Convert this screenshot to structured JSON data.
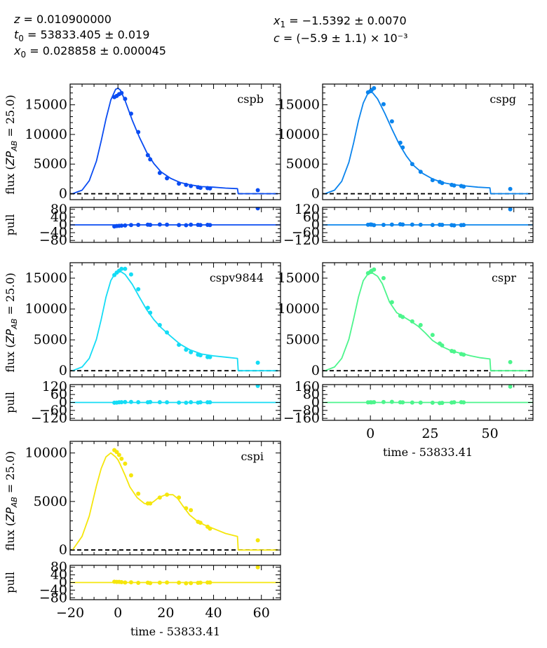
{
  "fit_params": [
    {
      "symbol": "z",
      "sub": "",
      "value": "= 0.010900000"
    },
    {
      "symbol": "t",
      "sub": "0",
      "value": "= 53833.405 ± 0.019"
    },
    {
      "symbol": "x",
      "sub": "0",
      "value": "= 0.028858 ± 0.000045"
    },
    {
      "symbol": "x",
      "sub": "1",
      "value": "= −1.5392 ± 0.0070"
    },
    {
      "symbol": "c",
      "sub": "",
      "value": "= (−5.9 ± 1.1) × 10⁻³"
    }
  ],
  "flux_ylabel": "flux (ZP_AB = 25.0)",
  "flux_ylabel_parts": {
    "prefix": "flux (",
    "zp": "ZP",
    "sub": "AB",
    "suffix": " = 25.0)"
  },
  "pull_ylabel": "pull",
  "xlabel": "time - 53833.41",
  "colors": {
    "cspb": "#0a4cf2",
    "cspg": "#0a84ed",
    "cspv9844": "#14dcf5",
    "cspr": "#4cf58c",
    "cspi": "#f5e60c",
    "zero_line": "#000000"
  },
  "chart_data": [
    {
      "type": "line",
      "band": "cspb",
      "xlim": [
        -20,
        68
      ],
      "ylim": [
        -1000,
        18500
      ],
      "yticks": [
        0,
        5000,
        10000,
        15000
      ],
      "xticks": [
        -20,
        0,
        20,
        40,
        60
      ],
      "model": {
        "x": [
          -19,
          -15,
          -12,
          -9,
          -7,
          -5,
          -3,
          -1,
          0,
          1,
          3,
          6,
          9,
          12,
          15,
          18,
          22,
          26,
          30,
          35,
          40,
          45,
          50,
          50.3,
          67
        ],
        "y": [
          0,
          600,
          2200,
          5500,
          8900,
          12600,
          15800,
          17600,
          17800,
          17500,
          15700,
          12400,
          9500,
          7000,
          5100,
          3700,
          2600,
          1900,
          1500,
          1200,
          1100,
          950,
          850,
          0,
          0
        ]
      },
      "data": {
        "x": [
          -1.5,
          -0.5,
          0.5,
          1.5,
          3,
          5.5,
          8.5,
          12.5,
          13.5,
          17.5,
          20.5,
          25.5,
          28.5,
          30.5,
          33.5,
          34.5,
          37.5,
          38.5,
          58.5
        ],
        "y": [
          16300,
          16500,
          16800,
          17000,
          16000,
          13500,
          10400,
          6500,
          5800,
          3500,
          2600,
          1700,
          1500,
          1300,
          1100,
          1000,
          950,
          900,
          600
        ]
      },
      "pull": {
        "ylim": [
          -90,
          90
        ],
        "yticks": [
          -80,
          -40,
          0,
          40,
          80
        ],
        "x": [
          -1.5,
          -0.5,
          0.5,
          1.5,
          3,
          5.5,
          8.5,
          12.5,
          13.5,
          17.5,
          20.5,
          25.5,
          28.5,
          30.5,
          33.5,
          34.5,
          37.5,
          38.5,
          58.5
        ],
        "y": [
          -8,
          -6,
          -5,
          -4,
          -3,
          -1,
          0,
          1,
          0,
          2,
          1,
          -1,
          -2,
          1,
          0,
          -1,
          0,
          -1,
          85
        ]
      }
    },
    {
      "type": "line",
      "band": "cspg",
      "xlim": [
        -20,
        68
      ],
      "ylim": [
        -1000,
        18500
      ],
      "yticks": [
        0,
        5000,
        10000,
        15000
      ],
      "xticks": [
        -20,
        0,
        20,
        40,
        60
      ],
      "model": {
        "x": [
          -19,
          -15,
          -12,
          -9,
          -7,
          -5,
          -3,
          -1,
          0,
          1,
          3,
          6,
          9,
          12,
          15,
          18,
          22,
          26,
          30,
          35,
          40,
          45,
          50,
          50.3,
          67
        ],
        "y": [
          0,
          600,
          2100,
          5300,
          8600,
          12300,
          15300,
          17000,
          17200,
          17000,
          16000,
          13600,
          10900,
          8400,
          6400,
          4800,
          3400,
          2500,
          1900,
          1500,
          1300,
          1100,
          1000,
          0,
          0
        ]
      },
      "data": {
        "x": [
          -1,
          0,
          0.5,
          1.5,
          5.5,
          9,
          12.5,
          13.5,
          17.5,
          21,
          26,
          29,
          30,
          34,
          35,
          38,
          39,
          58.5
        ],
        "y": [
          17100,
          17300,
          17500,
          17800,
          15100,
          12200,
          8600,
          7800,
          5000,
          3700,
          2300,
          2000,
          1800,
          1500,
          1400,
          1300,
          1200,
          800
        ]
      },
      "pull": {
        "ylim": [
          -135,
          135
        ],
        "yticks": [
          -120,
          -60,
          0,
          60,
          120
        ],
        "x": [
          -1,
          0,
          0.5,
          1.5,
          5.5,
          9,
          12.5,
          13.5,
          17.5,
          21,
          26,
          29,
          30,
          34,
          35,
          38,
          39,
          58.5
        ],
        "y": [
          1,
          3,
          2,
          -2,
          0,
          2,
          5,
          3,
          2,
          1,
          -1,
          1,
          0,
          -2,
          -4,
          -2,
          -1,
          120
        ]
      }
    },
    {
      "type": "line",
      "band": "cspv9844",
      "xlim": [
        -20,
        68
      ],
      "ylim": [
        -1000,
        17500
      ],
      "yticks": [
        0,
        5000,
        10000,
        15000
      ],
      "xticks": [
        -20,
        0,
        20,
        40,
        60
      ],
      "model": {
        "x": [
          -19,
          -15,
          -12,
          -9,
          -7,
          -5,
          -3,
          -1,
          0,
          1,
          3,
          6,
          9,
          12,
          15,
          18,
          22,
          26,
          30,
          35,
          40,
          45,
          50,
          50.3,
          67
        ],
        "y": [
          0,
          600,
          2000,
          5100,
          8300,
          11900,
          14600,
          15900,
          16100,
          16100,
          15600,
          14000,
          11900,
          9900,
          8300,
          7000,
          5600,
          4300,
          3400,
          2700,
          2400,
          2200,
          2000,
          0,
          0
        ]
      },
      "data": {
        "x": [
          -1.5,
          -0.5,
          0.5,
          1.5,
          3,
          5.5,
          8.5,
          12.5,
          13.5,
          17.5,
          20.5,
          25.5,
          28.5,
          30.5,
          33.5,
          34.5,
          37.5,
          38.5,
          58.5
        ],
        "y": [
          15500,
          15900,
          16200,
          16500,
          16500,
          15600,
          13200,
          10200,
          9400,
          7400,
          6200,
          4200,
          3400,
          3000,
          2600,
          2500,
          2200,
          2200,
          1300
        ]
      },
      "pull": {
        "ylim": [
          -135,
          135
        ],
        "yticks": [
          -120,
          -60,
          0,
          60,
          120
        ],
        "x": [
          -1.5,
          -0.5,
          0.5,
          1.5,
          3,
          5.5,
          8.5,
          12.5,
          13.5,
          17.5,
          20.5,
          25.5,
          28.5,
          30.5,
          33.5,
          34.5,
          37.5,
          38.5,
          58.5
        ],
        "y": [
          -2,
          -1,
          1,
          2,
          3,
          4,
          2,
          1,
          3,
          2,
          1,
          -1,
          -2,
          2,
          -1,
          1,
          1,
          1,
          125
        ]
      }
    },
    {
      "type": "line",
      "band": "cspr",
      "xlim": [
        -20,
        68
      ],
      "ylim": [
        -1000,
        17500
      ],
      "yticks": [
        0,
        5000,
        10000,
        15000
      ],
      "xticks": [
        0,
        25,
        50
      ],
      "model": {
        "x": [
          -19,
          -15,
          -12,
          -9,
          -7,
          -5,
          -3,
          -1,
          0,
          1,
          3,
          5,
          8,
          11,
          14,
          17,
          20,
          23,
          26,
          30,
          34,
          38,
          42,
          46,
          50,
          50.3,
          67
        ],
        "y": [
          0,
          600,
          2000,
          5100,
          8400,
          11900,
          14600,
          15700,
          15800,
          15800,
          15300,
          14100,
          11100,
          9400,
          8700,
          8000,
          7200,
          6100,
          4900,
          3900,
          3200,
          2800,
          2400,
          2100,
          1900,
          0,
          0
        ]
      },
      "data": {
        "x": [
          -1,
          0,
          0.5,
          1.5,
          5.5,
          9,
          12.5,
          13.5,
          17.5,
          21,
          26,
          29,
          30,
          34,
          35,
          38,
          39,
          58.5
        ],
        "y": [
          15800,
          16000,
          16200,
          16400,
          15000,
          11100,
          8900,
          8700,
          8000,
          7400,
          5800,
          4400,
          4100,
          3200,
          3100,
          2700,
          2600,
          1400
        ]
      },
      "pull": {
        "ylim": [
          -180,
          180
        ],
        "yticks": [
          -160,
          -80,
          0,
          80,
          160
        ],
        "x": [
          -1,
          0,
          0.5,
          1.5,
          5.5,
          9,
          12.5,
          13.5,
          17.5,
          21,
          26,
          29,
          30,
          34,
          35,
          38,
          39,
          58.5
        ],
        "y": [
          1,
          2,
          1,
          3,
          4,
          6,
          2,
          1,
          -1,
          -2,
          -3,
          -6,
          -4,
          -1,
          2,
          3,
          1,
          160
        ]
      }
    },
    {
      "type": "line",
      "band": "cspi",
      "xlim": [
        -20,
        68
      ],
      "ylim": [
        -500,
        11200
      ],
      "yticks": [
        0,
        5000,
        10000
      ],
      "xticks": [
        -20,
        0,
        20,
        40,
        60
      ],
      "model": {
        "x": [
          -19,
          -15,
          -12,
          -9,
          -7,
          -5,
          -3,
          -1,
          0,
          1,
          3,
          5,
          8,
          11,
          13,
          15,
          17,
          20,
          23,
          25,
          27,
          30,
          33,
          36,
          40,
          45,
          50,
          50.3,
          67
        ],
        "y": [
          0,
          1400,
          3500,
          6600,
          8400,
          9600,
          10000,
          9600,
          9300,
          8800,
          7700,
          6500,
          5400,
          4800,
          4700,
          5000,
          5400,
          5700,
          5700,
          5300,
          4600,
          3600,
          3000,
          2600,
          2200,
          1700,
          1400,
          0,
          0
        ]
      },
      "data": {
        "x": [
          -1.5,
          -0.5,
          0.5,
          1.5,
          3,
          5.5,
          8.5,
          12.5,
          13.5,
          17.5,
          20.5,
          25.5,
          28.5,
          30.5,
          33.5,
          34.5,
          37.5,
          38.5,
          58.5
        ],
        "y": [
          10300,
          10100,
          9800,
          9400,
          8900,
          7700,
          5800,
          4800,
          4800,
          5400,
          5700,
          5400,
          4300,
          4100,
          2900,
          2800,
          2400,
          2200,
          1000
        ]
      },
      "pull": {
        "ylim": [
          -90,
          90
        ],
        "yticks": [
          -80,
          -40,
          0,
          40,
          80
        ],
        "x": [
          -1.5,
          -0.5,
          0.5,
          1.5,
          3,
          5.5,
          8.5,
          12.5,
          13.5,
          17.5,
          20.5,
          25.5,
          28.5,
          30.5,
          33.5,
          34.5,
          37.5,
          38.5,
          58.5
        ],
        "y": [
          4,
          3,
          3,
          2,
          0,
          1,
          -2,
          -1,
          -3,
          -1,
          0,
          -1,
          -4,
          -3,
          -2,
          -1,
          0,
          0,
          80
        ]
      }
    }
  ]
}
